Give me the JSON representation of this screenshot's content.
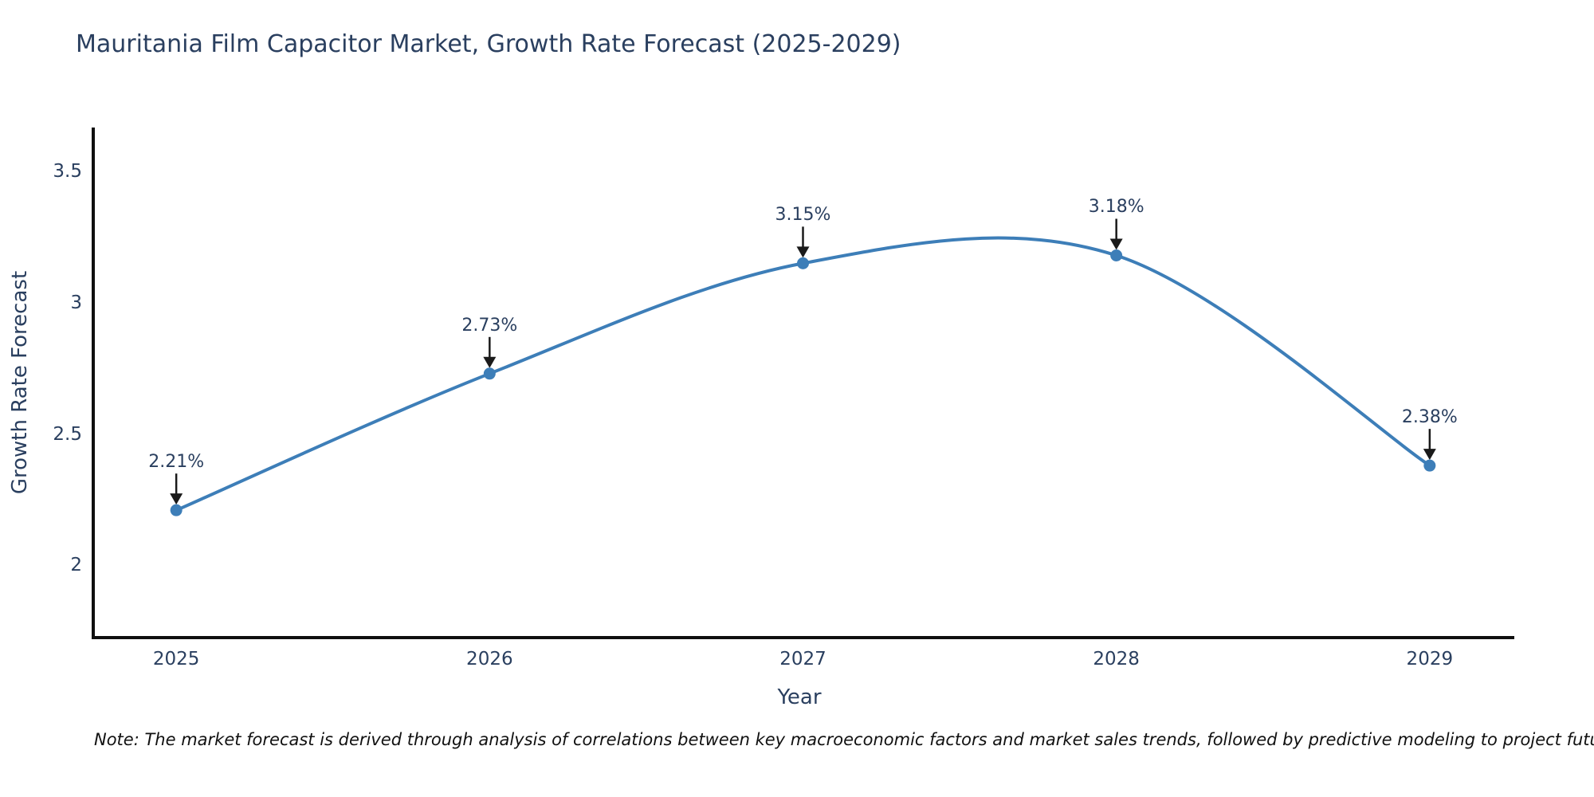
{
  "page": {
    "background": "#ffffff"
  },
  "note": {
    "text": "Note: The market forecast is derived through analysis of correlations between key macroeconomic factors and market sales trends, followed by predictive modeling to project future sales"
  },
  "chart_data": {
    "type": "line",
    "title": "Mauritania Film Capacitor Market, Growth Rate Forecast (2025-2029)",
    "xlabel": "Year",
    "ylabel": "Growth Rate Forecast",
    "x": [
      2025,
      2026,
      2027,
      2028,
      2029
    ],
    "xtick_labels": [
      "2025",
      "2026",
      "2027",
      "2028",
      "2029"
    ],
    "series": [
      {
        "name": "Growth Rate Forecast",
        "values": [
          2.21,
          2.73,
          3.15,
          3.18,
          2.38
        ]
      }
    ],
    "point_labels": [
      "2.21%",
      "2.73%",
      "3.15%",
      "3.18%",
      "2.38%"
    ],
    "yticks": [
      2,
      2.5,
      3,
      3.5
    ],
    "ytick_labels": [
      "2",
      "2.5",
      "3",
      "3.5"
    ],
    "xlim": [
      2024.73,
      2029.27
    ],
    "ylim": [
      1.725,
      3.667
    ],
    "line_shape": "spline",
    "grid": false,
    "legend": "none",
    "annotations_have_arrows": true,
    "colors": {
      "line": "#3d7eb8",
      "marker": "#3d7eb8",
      "axis": "#0f0f0f",
      "text": "#2a3f5f",
      "arrow": "#1a1a1a",
      "background": "#ffffff"
    }
  }
}
